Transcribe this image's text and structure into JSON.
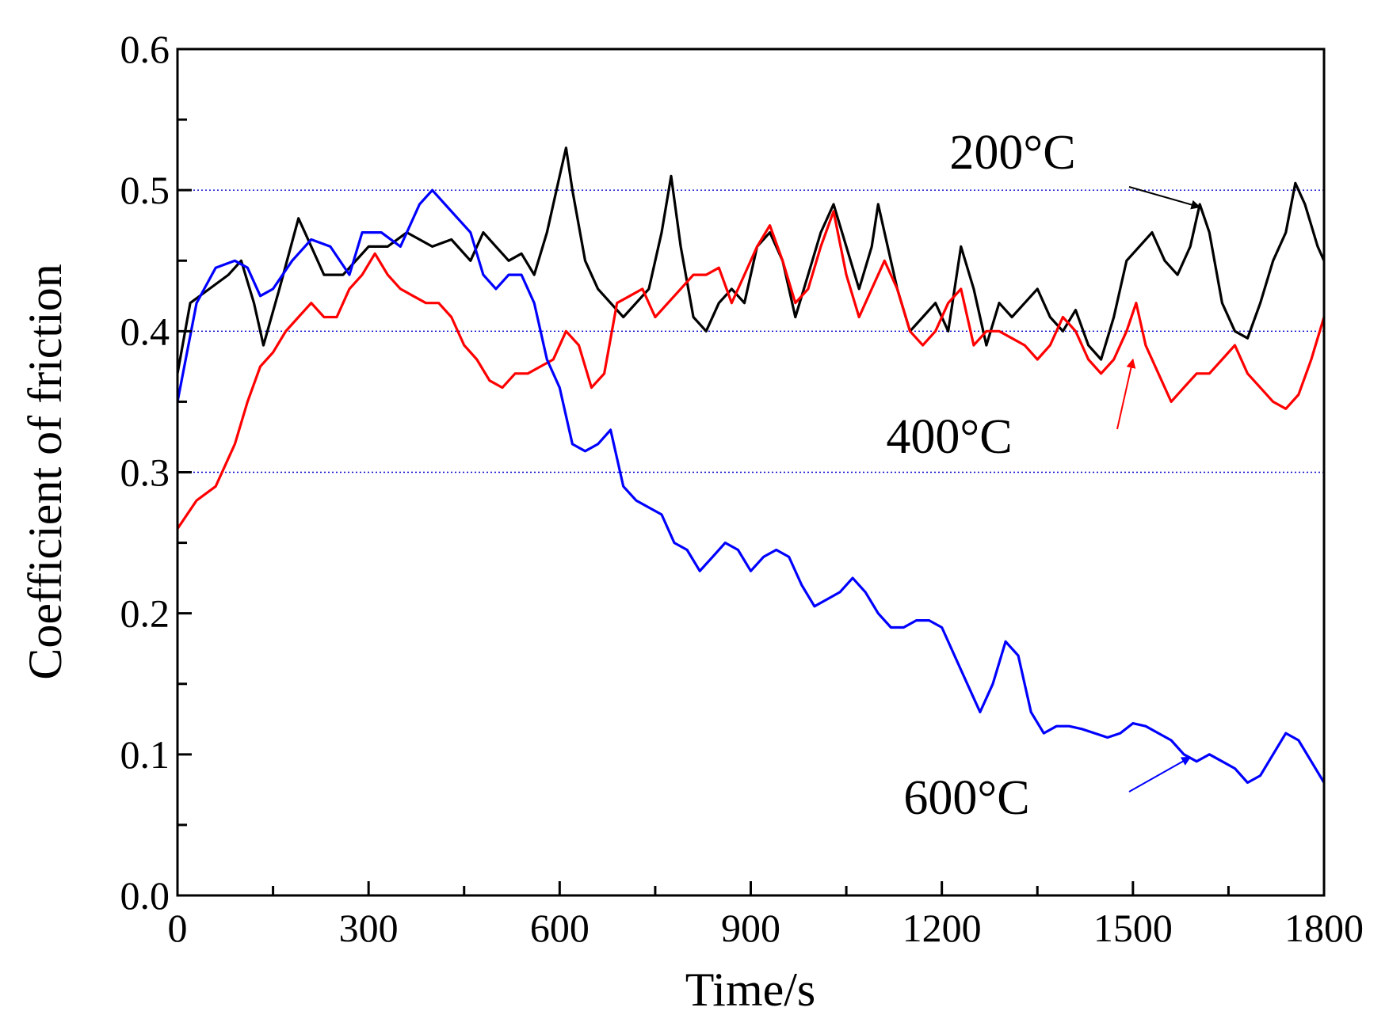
{
  "chart_data": {
    "type": "line",
    "title": "",
    "xlabel": "Time/s",
    "ylabel": "Coefficient of  friction",
    "xlim": [
      0,
      1800
    ],
    "ylim": [
      0,
      0.6
    ],
    "xticks": [
      0,
      300,
      600,
      900,
      1200,
      1500,
      1800
    ],
    "xtick_labels": [
      "0",
      "300",
      "600",
      "900",
      "1200",
      "1500",
      "1800"
    ],
    "yticks": [
      0,
      0.1,
      0.2,
      0.3,
      0.4,
      0.5,
      0.6
    ],
    "ytick_labels": [
      "0.0",
      "0.1",
      "0.2",
      "0.3",
      "0.4",
      "0.5",
      "0.6"
    ],
    "gridlines_y": [
      0.3,
      0.4,
      0.5
    ],
    "grid_color": "#0000cc",
    "series": [
      {
        "name": "200°C",
        "color": "#000000",
        "x": [
          0,
          20,
          50,
          80,
          100,
          120,
          135,
          160,
          190,
          200,
          230,
          260,
          300,
          330,
          360,
          400,
          430,
          460,
          480,
          500,
          520,
          540,
          560,
          580,
          600,
          610,
          620,
          640,
          660,
          680,
          700,
          720,
          740,
          760,
          775,
          790,
          810,
          830,
          850,
          870,
          890,
          910,
          930,
          950,
          970,
          990,
          1010,
          1030,
          1050,
          1070,
          1090,
          1100,
          1110,
          1130,
          1150,
          1170,
          1190,
          1210,
          1230,
          1250,
          1270,
          1290,
          1310,
          1330,
          1350,
          1370,
          1390,
          1410,
          1430,
          1450,
          1470,
          1490,
          1510,
          1530,
          1550,
          1570,
          1590,
          1605,
          1620,
          1640,
          1660,
          1680,
          1700,
          1720,
          1740,
          1755,
          1770,
          1790,
          1800
        ],
        "values": [
          0.37,
          0.42,
          0.43,
          0.44,
          0.45,
          0.42,
          0.39,
          0.43,
          0.48,
          0.47,
          0.44,
          0.44,
          0.46,
          0.46,
          0.47,
          0.46,
          0.465,
          0.45,
          0.47,
          0.46,
          0.45,
          0.455,
          0.44,
          0.47,
          0.51,
          0.53,
          0.5,
          0.45,
          0.43,
          0.42,
          0.41,
          0.42,
          0.43,
          0.47,
          0.51,
          0.46,
          0.41,
          0.4,
          0.42,
          0.43,
          0.42,
          0.46,
          0.47,
          0.45,
          0.41,
          0.44,
          0.47,
          0.49,
          0.46,
          0.43,
          0.46,
          0.49,
          0.47,
          0.43,
          0.4,
          0.41,
          0.42,
          0.4,
          0.46,
          0.43,
          0.39,
          0.42,
          0.41,
          0.42,
          0.43,
          0.41,
          0.4,
          0.415,
          0.39,
          0.38,
          0.41,
          0.45,
          0.46,
          0.47,
          0.45,
          0.44,
          0.46,
          0.49,
          0.47,
          0.42,
          0.4,
          0.395,
          0.42,
          0.45,
          0.47,
          0.505,
          0.49,
          0.46,
          0.45
        ]
      },
      {
        "name": "400°C",
        "color": "#ff0000",
        "x": [
          0,
          30,
          60,
          90,
          110,
          130,
          150,
          170,
          190,
          210,
          230,
          250,
          270,
          290,
          310,
          330,
          350,
          370,
          390,
          410,
          430,
          450,
          470,
          490,
          510,
          530,
          550,
          570,
          590,
          610,
          630,
          650,
          670,
          690,
          710,
          730,
          750,
          770,
          790,
          810,
          830,
          850,
          870,
          890,
          910,
          930,
          950,
          970,
          990,
          1010,
          1030,
          1050,
          1070,
          1090,
          1110,
          1130,
          1150,
          1170,
          1190,
          1210,
          1230,
          1250,
          1270,
          1290,
          1310,
          1330,
          1350,
          1370,
          1390,
          1410,
          1430,
          1450,
          1470,
          1490,
          1505,
          1520,
          1540,
          1560,
          1580,
          1600,
          1620,
          1640,
          1660,
          1680,
          1700,
          1720,
          1740,
          1760,
          1780,
          1800
        ],
        "values": [
          0.26,
          0.28,
          0.29,
          0.32,
          0.35,
          0.375,
          0.385,
          0.4,
          0.41,
          0.42,
          0.41,
          0.41,
          0.43,
          0.44,
          0.455,
          0.44,
          0.43,
          0.425,
          0.42,
          0.42,
          0.41,
          0.39,
          0.38,
          0.365,
          0.36,
          0.37,
          0.37,
          0.375,
          0.38,
          0.4,
          0.39,
          0.36,
          0.37,
          0.42,
          0.425,
          0.43,
          0.41,
          0.42,
          0.43,
          0.44,
          0.44,
          0.445,
          0.42,
          0.44,
          0.46,
          0.475,
          0.45,
          0.42,
          0.43,
          0.46,
          0.485,
          0.44,
          0.41,
          0.43,
          0.45,
          0.43,
          0.4,
          0.39,
          0.4,
          0.42,
          0.43,
          0.39,
          0.4,
          0.4,
          0.395,
          0.39,
          0.38,
          0.39,
          0.41,
          0.4,
          0.38,
          0.37,
          0.38,
          0.4,
          0.42,
          0.39,
          0.37,
          0.35,
          0.36,
          0.37,
          0.37,
          0.38,
          0.39,
          0.37,
          0.36,
          0.35,
          0.345,
          0.355,
          0.38,
          0.41
        ]
      },
      {
        "name": "600°C",
        "color": "#0000ff",
        "x": [
          0,
          30,
          60,
          90,
          110,
          130,
          150,
          180,
          210,
          240,
          270,
          290,
          320,
          350,
          380,
          400,
          420,
          440,
          460,
          480,
          500,
          520,
          540,
          560,
          580,
          600,
          620,
          640,
          660,
          680,
          700,
          720,
          740,
          760,
          780,
          800,
          820,
          840,
          860,
          880,
          900,
          920,
          940,
          960,
          980,
          1000,
          1020,
          1040,
          1060,
          1080,
          1100,
          1120,
          1140,
          1160,
          1180,
          1200,
          1220,
          1240,
          1260,
          1280,
          1300,
          1320,
          1340,
          1360,
          1380,
          1400,
          1420,
          1440,
          1460,
          1480,
          1500,
          1520,
          1540,
          1560,
          1580,
          1600,
          1620,
          1640,
          1660,
          1680,
          1700,
          1720,
          1740,
          1760,
          1780,
          1800
        ],
        "values": [
          0.35,
          0.42,
          0.445,
          0.45,
          0.445,
          0.425,
          0.43,
          0.45,
          0.465,
          0.46,
          0.44,
          0.47,
          0.47,
          0.46,
          0.49,
          0.5,
          0.49,
          0.48,
          0.47,
          0.44,
          0.43,
          0.44,
          0.44,
          0.42,
          0.38,
          0.36,
          0.32,
          0.315,
          0.32,
          0.33,
          0.29,
          0.28,
          0.275,
          0.27,
          0.25,
          0.245,
          0.23,
          0.24,
          0.25,
          0.245,
          0.23,
          0.24,
          0.245,
          0.24,
          0.22,
          0.205,
          0.21,
          0.215,
          0.225,
          0.215,
          0.2,
          0.19,
          0.19,
          0.195,
          0.195,
          0.19,
          0.17,
          0.15,
          0.13,
          0.15,
          0.18,
          0.17,
          0.13,
          0.115,
          0.12,
          0.12,
          0.118,
          0.115,
          0.112,
          0.115,
          0.122,
          0.12,
          0.115,
          0.11,
          0.1,
          0.095,
          0.1,
          0.095,
          0.09,
          0.08,
          0.085,
          0.1,
          0.115,
          0.11,
          0.095,
          0.08
        ]
      }
    ],
    "annotations": [
      {
        "text": "200°C",
        "target_x": 1605,
        "target_y": 0.488,
        "color": "#000000"
      },
      {
        "text": "400°C",
        "target_x": 1500,
        "target_y": 0.38,
        "color": "#ff0000"
      },
      {
        "text": "600°C",
        "target_x": 1590,
        "target_y": 0.098,
        "color": "#0000ff"
      }
    ]
  }
}
